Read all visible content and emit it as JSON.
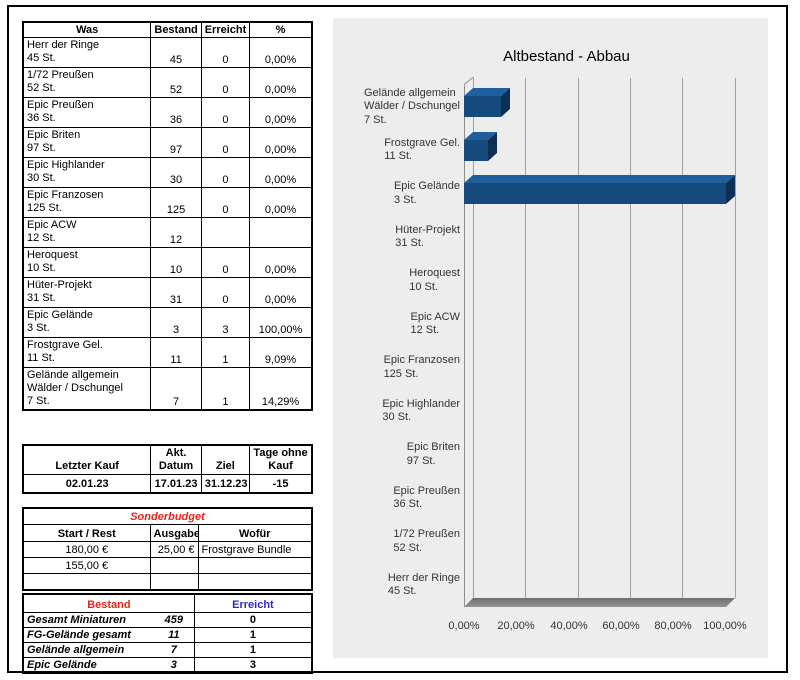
{
  "main_table": {
    "headers": [
      "Was",
      "Bestand",
      "Erreicht",
      "%"
    ],
    "rows": [
      {
        "was": "Herr der Ringe\n45 St.",
        "bestand": "45",
        "erreicht": "0",
        "pct": "0,00%"
      },
      {
        "was": "1/72 Preußen\n52 St.",
        "bestand": "52",
        "erreicht": "0",
        "pct": "0,00%"
      },
      {
        "was": "Epic Preußen\n36 St.",
        "bestand": "36",
        "erreicht": "0",
        "pct": "0,00%"
      },
      {
        "was": "Epic Briten\n97 St.",
        "bestand": "97",
        "erreicht": "0",
        "pct": "0,00%"
      },
      {
        "was": "Epic Highlander\n30 St.",
        "bestand": "30",
        "erreicht": "0",
        "pct": "0,00%"
      },
      {
        "was": "Epic Franzosen\n125 St.",
        "bestand": "125",
        "erreicht": "0",
        "pct": "0,00%"
      },
      {
        "was": "Epic ACW\n12 St.",
        "bestand": "12",
        "erreicht": "",
        "pct": ""
      },
      {
        "was": "Heroquest\n10 St.",
        "bestand": "10",
        "erreicht": "0",
        "pct": "0,00%"
      },
      {
        "was": "Hüter-Projekt\n31 St.",
        "bestand": "31",
        "erreicht": "0",
        "pct": "0,00%"
      },
      {
        "was": "Epic Gelände\n3 St.",
        "bestand": "3",
        "erreicht": "3",
        "pct": "100,00%"
      },
      {
        "was": "Frostgrave Gel.\n11 St.",
        "bestand": "11",
        "erreicht": "1",
        "pct": "9,09%"
      },
      {
        "was": "Gelände allgemein\nWälder / Dschungel\n7 St.",
        "bestand": "7",
        "erreicht": "1",
        "pct": "14,29%"
      }
    ]
  },
  "kauf_table": {
    "headers": [
      "Letzter Kauf",
      "Akt.\nDatum",
      "Ziel",
      "Tage ohne\nKauf"
    ],
    "values": [
      "02.01.23",
      "17.01.23",
      "31.12.23",
      "-15"
    ]
  },
  "budget_table": {
    "title": "Sonderbudget",
    "headers": [
      "Start / Rest",
      "Ausgabe",
      "Wofür"
    ],
    "rows": [
      {
        "start": "180,00 €",
        "ausgabe": "25,00 €",
        "wofuer": "Frostgrave Bundle"
      },
      {
        "start": "155,00 €",
        "ausgabe": "",
        "wofuer": ""
      },
      {
        "start": "",
        "ausgabe": "",
        "wofuer": ""
      }
    ]
  },
  "summary_table": {
    "header_bestand": "Bestand",
    "header_erreicht": "Erreicht",
    "rows": [
      {
        "label": "Gesamt Miniaturen",
        "bestand": "459",
        "erreicht": "0"
      },
      {
        "label": "FG-Gelände gesamt",
        "bestand": "11",
        "erreicht": "1"
      },
      {
        "label": "Gelände allgemein",
        "bestand": "7",
        "erreicht": "1"
      },
      {
        "label": "Epic Gelände",
        "bestand": "3",
        "erreicht": "3"
      }
    ]
  },
  "chart_data": {
    "type": "bar",
    "orientation": "horizontal",
    "style": "3d",
    "title": "Altbestand - Abbau",
    "categories": [
      "Gelände allgemein\nWälder / Dschungel\n7 St.",
      "Frostgrave Gel.\n11 St.",
      "Epic Gelände\n3 St.",
      "Hüter-Projekt\n31 St.",
      "Heroquest\n10 St.",
      "Epic ACW\n12 St.",
      "Epic Franzosen\n125 St.",
      "Epic Highlander\n30 St.",
      "Epic Briten\n97 St.",
      "Epic Preußen\n36 St.",
      "1/72 Preußen\n52 St.",
      "Herr der Ringe\n45 St."
    ],
    "values": [
      14.29,
      9.09,
      100,
      0,
      0,
      0,
      0,
      0,
      0,
      0,
      0,
      0
    ],
    "x_ticks": [
      "0,00%",
      "20,00%",
      "40,00%",
      "60,00%",
      "80,00%",
      "100,00%"
    ],
    "xlim": [
      0,
      100
    ],
    "grid": true,
    "legend": "none",
    "bar_color": "#164a7d",
    "bar_color_top": "#215e9d",
    "bar_color_side": "#0d2f55",
    "panel_bg": "#ededed",
    "grid_color": "#a0a0a0"
  }
}
